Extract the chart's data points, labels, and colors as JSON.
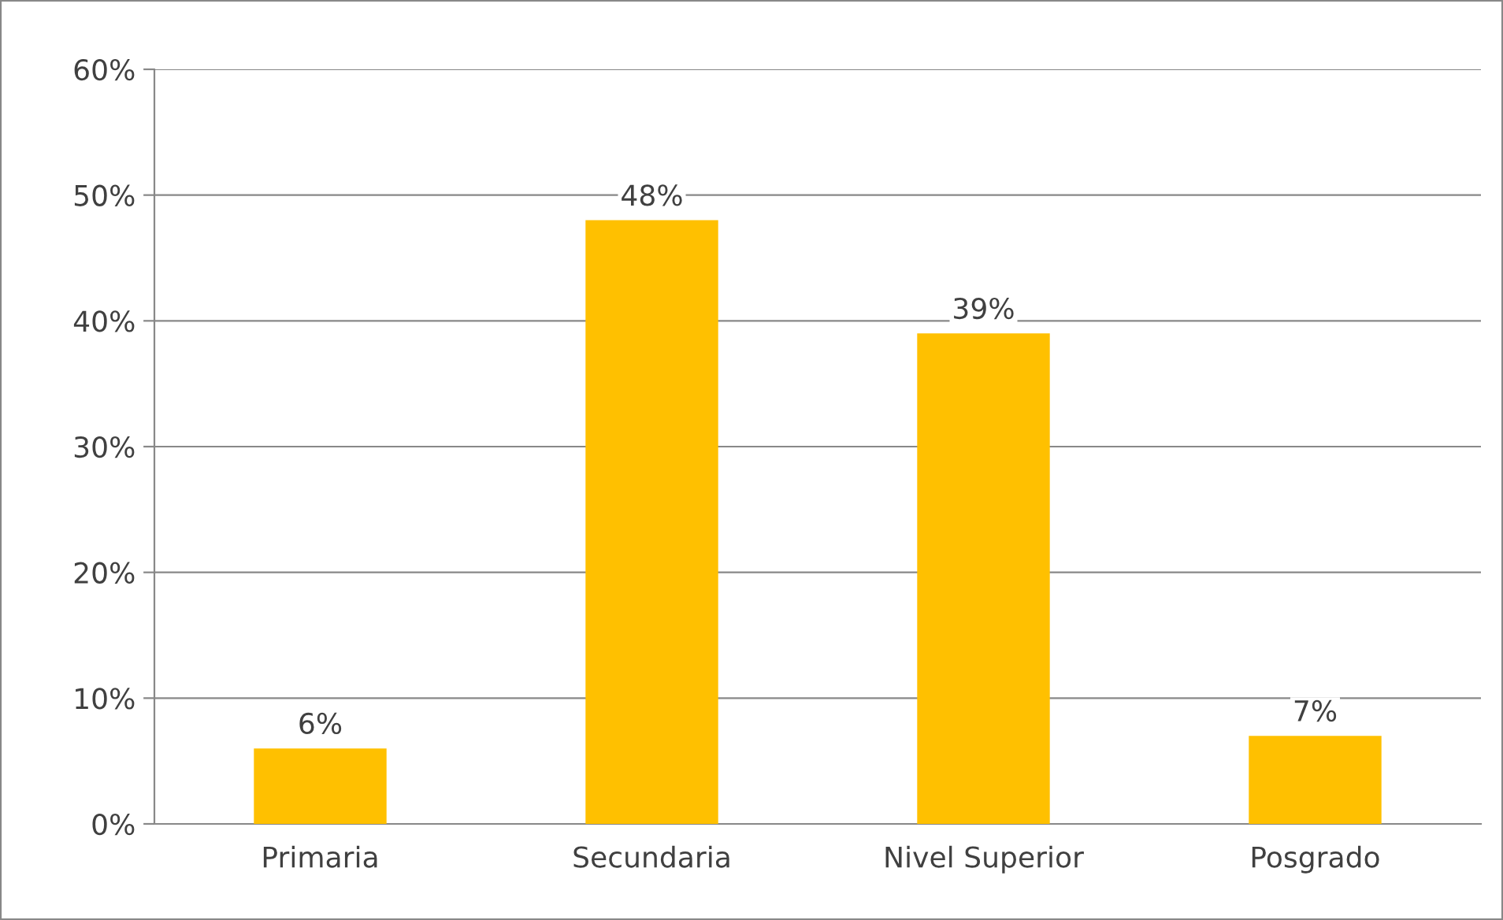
{
  "chart_data": {
    "type": "bar",
    "categories": [
      "Primaria",
      "Secundaria",
      "Nivel Superior",
      "Posgrado"
    ],
    "values": [
      6,
      48,
      39,
      7
    ],
    "color": "#ffc000",
    "value_labels": [
      "6%",
      "48%",
      "39%",
      "7%"
    ],
    "ylim": [
      0,
      60
    ],
    "yticks": [
      {
        "value": 0,
        "label": "0%"
      },
      {
        "value": 10,
        "label": "10%"
      },
      {
        "value": 20,
        "label": "20%"
      },
      {
        "value": 30,
        "label": "30%"
      },
      {
        "value": 40,
        "label": "40%"
      },
      {
        "value": 50,
        "label": "50%"
      },
      {
        "value": 60,
        "label": "60%"
      }
    ],
    "grid": "y",
    "legend": false
  }
}
